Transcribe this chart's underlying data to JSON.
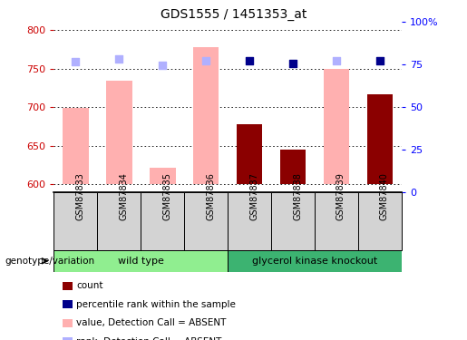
{
  "title": "GDS1555 / 1451353_at",
  "samples": [
    "GSM87833",
    "GSM87834",
    "GSM87835",
    "GSM87836",
    "GSM87837",
    "GSM87838",
    "GSM87839",
    "GSM87840"
  ],
  "ylim_left": [
    590,
    810
  ],
  "ylim_right": [
    0,
    100
  ],
  "yticks_left": [
    600,
    650,
    700,
    750,
    800
  ],
  "yticks_right": [
    0,
    25,
    50,
    75,
    100
  ],
  "yticklabels_right": [
    "0",
    "25",
    "50",
    "75",
    "100%"
  ],
  "bar_bottom": 600,
  "absent_values": [
    699,
    734,
    621,
    778,
    null,
    null,
    750,
    null
  ],
  "absent_ranks": [
    759,
    762,
    754,
    760,
    null,
    null,
    760,
    null
  ],
  "present_values": [
    null,
    null,
    null,
    null,
    678,
    645,
    null,
    716
  ],
  "present_ranks": [
    null,
    null,
    null,
    null,
    760,
    756,
    null,
    760
  ],
  "color_absent_bar": "#FFB0B0",
  "color_absent_rank": "#B0B0FF",
  "color_present_bar": "#8B0000",
  "color_present_rank": "#00008B",
  "wt_color": "#90EE90",
  "gk_color": "#3CB371",
  "sample_bg_color": "#D3D3D3",
  "legend_items": [
    {
      "color": "#8B0000",
      "label": "count"
    },
    {
      "color": "#00008B",
      "label": "percentile rank within the sample"
    },
    {
      "color": "#FFB0B0",
      "label": "value, Detection Call = ABSENT"
    },
    {
      "color": "#B0B0FF",
      "label": "rank, Detection Call = ABSENT"
    }
  ],
  "bar_width": 0.6
}
